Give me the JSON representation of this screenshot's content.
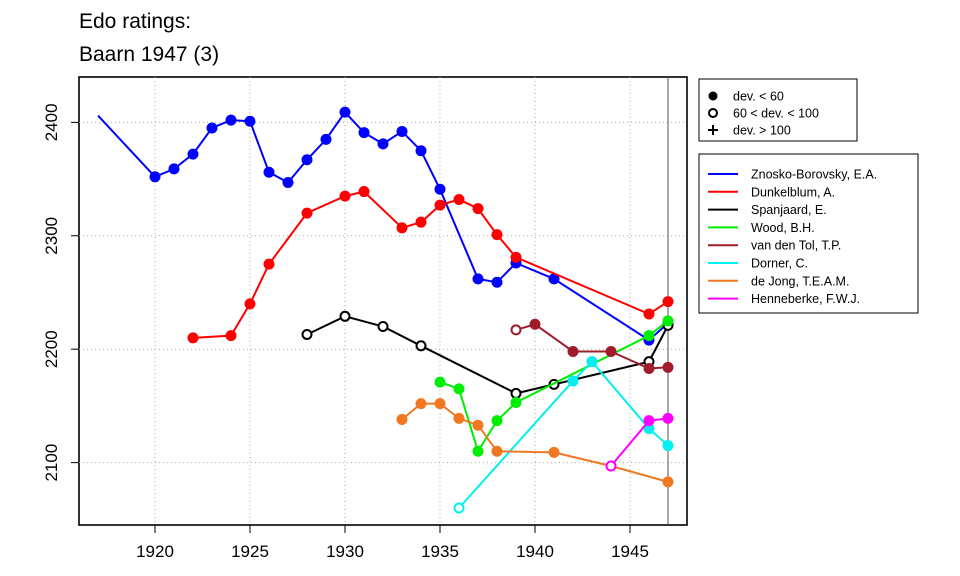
{
  "chart_data": {
    "type": "line",
    "title": "Edo ratings:",
    "subtitle": "Baarn 1947 (3)",
    "xlabel": "",
    "ylabel": "",
    "xlim": [
      1916,
      1948
    ],
    "ylim": [
      2045,
      2440
    ],
    "x_ticks": [
      1920,
      1925,
      1930,
      1935,
      1940,
      1945
    ],
    "y_ticks": [
      2100,
      2200,
      2300,
      2400
    ],
    "grid": true,
    "event_year": 1947,
    "deviation_legend": [
      {
        "symbol": "filled-circle",
        "label": "dev. < 60"
      },
      {
        "symbol": "open-circle",
        "label": "60 < dev. < 100"
      },
      {
        "symbol": "plus",
        "label": "dev. > 100"
      }
    ],
    "series": [
      {
        "name": "Znosko-Borovsky, E.A.",
        "color": "#0000ff",
        "points": [
          [
            1917,
            2406,
            "none"
          ],
          [
            1920,
            2352,
            "filled"
          ],
          [
            1921,
            2359,
            "filled"
          ],
          [
            1922,
            2372,
            "filled"
          ],
          [
            1923,
            2395,
            "filled"
          ],
          [
            1924,
            2402,
            "filled"
          ],
          [
            1925,
            2401,
            "filled"
          ],
          [
            1926,
            2356,
            "filled"
          ],
          [
            1927,
            2347,
            "filled"
          ],
          [
            1928,
            2367,
            "filled"
          ],
          [
            1929,
            2385,
            "filled"
          ],
          [
            1930,
            2409,
            "filled"
          ],
          [
            1931,
            2391,
            "filled"
          ],
          [
            1932,
            2381,
            "filled"
          ],
          [
            1933,
            2392,
            "filled"
          ],
          [
            1934,
            2375,
            "filled"
          ],
          [
            1935,
            2341,
            "filled"
          ],
          [
            1937,
            2262,
            "filled"
          ],
          [
            1938,
            2259,
            "filled"
          ],
          [
            1939,
            2276,
            "filled"
          ],
          [
            1941,
            2262,
            "filled"
          ],
          [
            1946,
            2208,
            "filled"
          ],
          [
            1947,
            2223,
            "filled"
          ]
        ]
      },
      {
        "name": "Dunkelblum, A.",
        "color": "#ff0000",
        "points": [
          [
            1922,
            2210,
            "filled"
          ],
          [
            1924,
            2212,
            "filled"
          ],
          [
            1925,
            2240,
            "filled"
          ],
          [
            1926,
            2275,
            "filled"
          ],
          [
            1928,
            2320,
            "filled"
          ],
          [
            1930,
            2335,
            "filled"
          ],
          [
            1931,
            2339,
            "filled"
          ],
          [
            1933,
            2307,
            "filled"
          ],
          [
            1934,
            2312,
            "filled"
          ],
          [
            1935,
            2327,
            "filled"
          ],
          [
            1936,
            2332,
            "filled"
          ],
          [
            1937,
            2324,
            "filled"
          ],
          [
            1938,
            2301,
            "filled"
          ],
          [
            1939,
            2281,
            "filled"
          ],
          [
            1946,
            2231,
            "filled"
          ],
          [
            1947,
            2242,
            "filled"
          ]
        ]
      },
      {
        "name": "Spanjaard, E.",
        "color": "#000000",
        "points": [
          [
            1928,
            2213,
            "open"
          ],
          [
            1930,
            2229,
            "open"
          ],
          [
            1932,
            2220,
            "open"
          ],
          [
            1934,
            2203,
            "open"
          ],
          [
            1939,
            2161,
            "open"
          ],
          [
            1941,
            2169,
            "open"
          ],
          [
            1946,
            2189,
            "open"
          ],
          [
            1947,
            2221,
            "open"
          ]
        ]
      },
      {
        "name": "Wood, B.H.",
        "color": "#00ee00",
        "points": [
          [
            1935,
            2171,
            "filled"
          ],
          [
            1936,
            2165,
            "filled"
          ],
          [
            1937,
            2110,
            "filled"
          ],
          [
            1938,
            2137,
            "filled"
          ],
          [
            1939,
            2153,
            "filled"
          ],
          [
            1946,
            2212,
            "filled"
          ],
          [
            1947,
            2225,
            "filled"
          ]
        ]
      },
      {
        "name": "van den Tol, T.P.",
        "color": "#a01c2c",
        "points": [
          [
            1939,
            2217,
            "open"
          ],
          [
            1940,
            2222,
            "filled"
          ],
          [
            1942,
            2198,
            "filled"
          ],
          [
            1944,
            2198,
            "filled"
          ],
          [
            1946,
            2183,
            "filled"
          ],
          [
            1947,
            2184,
            "filled"
          ]
        ]
      },
      {
        "name": "Dorner, C.",
        "color": "#00f0f0",
        "points": [
          [
            1936,
            2060,
            "open"
          ],
          [
            1942,
            2172,
            "filled"
          ],
          [
            1943,
            2189,
            "filled"
          ],
          [
            1946,
            2130,
            "filled"
          ],
          [
            1947,
            2115,
            "filled"
          ]
        ]
      },
      {
        "name": "de Jong, T.E.A.M.",
        "color": "#f07820",
        "points": [
          [
            1933,
            2138,
            "filled"
          ],
          [
            1934,
            2152,
            "filled"
          ],
          [
            1935,
            2152,
            "filled"
          ],
          [
            1936,
            2139,
            "filled"
          ],
          [
            1937,
            2133,
            "filled"
          ],
          [
            1938,
            2110,
            "filled"
          ],
          [
            1941,
            2109,
            "filled"
          ],
          [
            1944,
            2097,
            "filled"
          ],
          [
            1947,
            2083,
            "filled"
          ]
        ]
      },
      {
        "name": "Henneberke, F.W.J.",
        "color": "#ff00ff",
        "points": [
          [
            1944,
            2097,
            "open"
          ],
          [
            1946,
            2137,
            "filled"
          ],
          [
            1947,
            2139,
            "filled"
          ]
        ]
      }
    ]
  }
}
